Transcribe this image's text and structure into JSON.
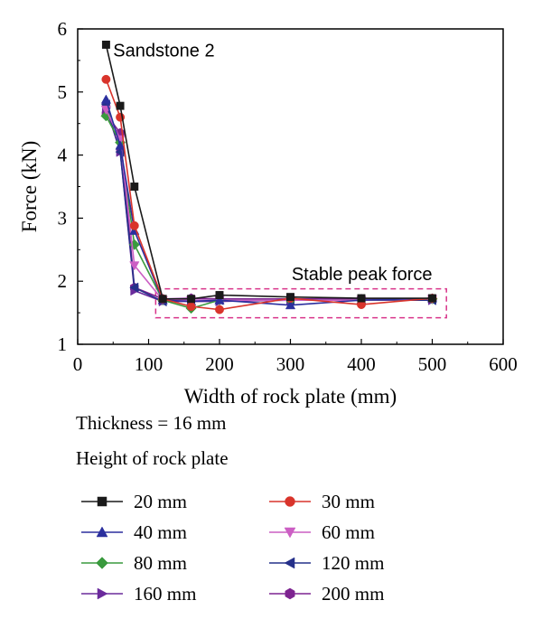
{
  "chart_data": {
    "type": "line",
    "xlabel": "Width of rock plate (mm)",
    "ylabel": "Force (kN)",
    "xlim": [
      0,
      600
    ],
    "ylim": [
      1,
      6
    ],
    "xticks": [
      0,
      100,
      200,
      300,
      400,
      500,
      600
    ],
    "yticks": [
      1,
      2,
      3,
      4,
      5,
      6
    ],
    "grid": false,
    "annotations": [
      {
        "text": "Sandstone 2"
      },
      {
        "text": "Stable peak force",
        "box": {
          "x_range": [
            110,
            520
          ],
          "y_range": [
            1.42,
            1.88
          ]
        }
      }
    ],
    "notes": [
      "Thickness = 16 mm",
      "Height of rock plate"
    ],
    "legend_position": "bottom",
    "series": [
      {
        "name": "20 mm",
        "color": "#1a1a1a",
        "marker": "square",
        "x": [
          40,
          60,
          80,
          120,
          160,
          200,
          300,
          400,
          500
        ],
        "y": [
          5.75,
          4.78,
          3.5,
          1.72,
          1.72,
          1.78,
          1.75,
          1.73,
          1.73
        ]
      },
      {
        "name": "30 mm",
        "color": "#d9342b",
        "marker": "circle",
        "x": [
          40,
          60,
          80,
          120,
          160,
          200,
          300,
          400,
          500
        ],
        "y": [
          5.2,
          4.6,
          2.88,
          1.72,
          1.6,
          1.55,
          1.73,
          1.63,
          1.73
        ]
      },
      {
        "name": "40 mm",
        "color": "#2b2f9e",
        "marker": "triangle-up",
        "x": [
          40,
          60,
          80,
          120,
          160,
          200,
          300,
          400,
          500
        ],
        "y": [
          4.88,
          4.15,
          2.8,
          1.7,
          1.68,
          1.7,
          1.62,
          1.7,
          1.73
        ]
      },
      {
        "name": "60 mm",
        "color": "#cc5fc4",
        "marker": "triangle-down",
        "x": [
          40,
          60,
          80,
          120,
          160,
          200,
          300,
          400,
          500
        ],
        "y": [
          4.72,
          4.25,
          2.25,
          1.7,
          1.7,
          1.7,
          1.7,
          1.7,
          1.72
        ]
      },
      {
        "name": "80 mm",
        "color": "#3a9a3e",
        "marker": "diamond",
        "x": [
          40,
          60,
          80,
          120,
          160,
          200,
          300,
          400,
          500
        ],
        "y": [
          4.62,
          4.2,
          2.58,
          1.7,
          1.57,
          1.7,
          1.7,
          1.7,
          1.72
        ]
      },
      {
        "name": "120 mm",
        "color": "#25308a",
        "marker": "triangle-left",
        "x": [
          40,
          60,
          80,
          120,
          160,
          200,
          300,
          400,
          500
        ],
        "y": [
          4.8,
          4.05,
          1.9,
          1.68,
          1.7,
          1.7,
          1.7,
          1.7,
          1.7
        ]
      },
      {
        "name": "160 mm",
        "color": "#6a2b9c",
        "marker": "triangle-right",
        "x": [
          40,
          60,
          80,
          120,
          160,
          200,
          300,
          400,
          500
        ],
        "y": [
          4.75,
          4.05,
          1.85,
          1.68,
          1.68,
          1.68,
          1.7,
          1.7,
          1.7
        ]
      },
      {
        "name": "200 mm",
        "color": "#7d2390",
        "marker": "hexagon",
        "x": [
          40,
          60,
          80,
          120,
          160,
          200,
          300,
          400,
          500
        ],
        "y": [
          4.65,
          4.35,
          1.9,
          1.72,
          1.73,
          1.72,
          1.72,
          1.72,
          1.72
        ]
      }
    ]
  }
}
